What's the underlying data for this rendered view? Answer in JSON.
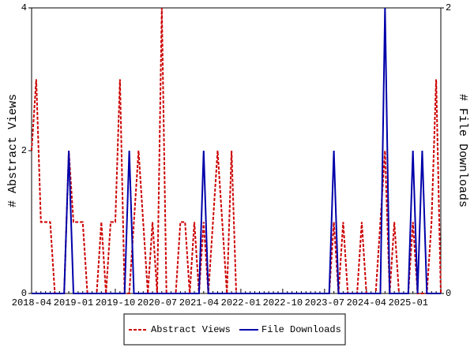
{
  "chart_data": {
    "type": "line",
    "categories": [
      "2018-04",
      null,
      null,
      null,
      null,
      null,
      null,
      null,
      null,
      "2019-01",
      null,
      null,
      null,
      null,
      null,
      null,
      null,
      null,
      "2019-10",
      null,
      null,
      null,
      null,
      null,
      null,
      null,
      null,
      "2020-07",
      null,
      null,
      null,
      null,
      null,
      null,
      null,
      null,
      "2021-04",
      null,
      null,
      null,
      null,
      null,
      null,
      null,
      null,
      "2022-01",
      null,
      null,
      null,
      null,
      null,
      null,
      null,
      null,
      "2022-10",
      null,
      null,
      null,
      null,
      null,
      null,
      null,
      null,
      "2023-07",
      null,
      null,
      null,
      null,
      null,
      null,
      null,
      null,
      "2024-04",
      null,
      null,
      null,
      null,
      null,
      null,
      null,
      null,
      "2025-01",
      null,
      null,
      null,
      null,
      null,
      null,
      null
    ],
    "y_label": "# Abstract Views",
    "y2_label": "# File Downloads",
    "ylim": [
      0,
      4
    ],
    "yticks": [
      0,
      2,
      4
    ],
    "y2lim": [
      0,
      2
    ],
    "y2ticks": [
      0,
      2
    ],
    "series": [
      {
        "name": "Abstract Views",
        "color": "#cc0000",
        "dashed": true,
        "axis": "y",
        "values": [
          2,
          3,
          1,
          1,
          1,
          0,
          0,
          0,
          2,
          1,
          1,
          1,
          0,
          0,
          0,
          1,
          0,
          1,
          1,
          3,
          0,
          0,
          1,
          2,
          1,
          0,
          1,
          0,
          4,
          0,
          0,
          0,
          1,
          1,
          0,
          1,
          0,
          1,
          0,
          1,
          2,
          1,
          0,
          2,
          0,
          0,
          0,
          0,
          0,
          0,
          0,
          0,
          0,
          0,
          0,
          0,
          0,
          0,
          0,
          0,
          0,
          0,
          0,
          0,
          0,
          1,
          0,
          1,
          0,
          0,
          0,
          1,
          0,
          0,
          0,
          1,
          2,
          0,
          1,
          0,
          0,
          0,
          1,
          0,
          0,
          0,
          1,
          3,
          0
        ]
      },
      {
        "name": "File Downloads",
        "color": "#0000aa",
        "dashed": false,
        "axis": "y2",
        "values": [
          0,
          0,
          0,
          0,
          0,
          0,
          0,
          0,
          1,
          0,
          0,
          0,
          0,
          0,
          0,
          0,
          0,
          0,
          0,
          0,
          0,
          1,
          0,
          0,
          0,
          0,
          0,
          0,
          0,
          0,
          0,
          0,
          0,
          0,
          0,
          0,
          0,
          1,
          0,
          0,
          0,
          0,
          0,
          0,
          0,
          0,
          0,
          0,
          0,
          0,
          0,
          0,
          0,
          0,
          0,
          0,
          0,
          0,
          0,
          0,
          0,
          0,
          0,
          0,
          0,
          1,
          0,
          0,
          0,
          0,
          0,
          0,
          0,
          0,
          0,
          0,
          2,
          0,
          0,
          0,
          0,
          0,
          1,
          0,
          1,
          0,
          0,
          0,
          0
        ]
      }
    ]
  }
}
